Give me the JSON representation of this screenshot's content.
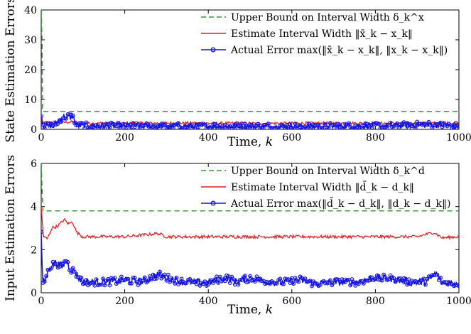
{
  "colors": {
    "upper": "#2e9e2e",
    "estimate": "#e8161b",
    "actual": "#1414e6",
    "axis": "#000000"
  },
  "chart_data": [
    {
      "type": "line",
      "title": "",
      "xlabel": "Time, k",
      "ylabel": "State Estimation Errors",
      "xlim": [
        0,
        1000
      ],
      "ylim": [
        0,
        40
      ],
      "xticks": [
        "0",
        "200",
        "400",
        "600",
        "800",
        "1000"
      ],
      "yticks": [
        "0",
        "10",
        "20",
        "30",
        "40"
      ],
      "legend_position": "top-right",
      "grid": false,
      "series": [
        {
          "name": "Upper Bound on Interval Width δ_k^x",
          "style": "dashed",
          "points": [
            [
              0,
              40
            ],
            [
              2,
              30
            ],
            [
              3,
              6
            ],
            [
              1000,
              6
            ]
          ]
        },
        {
          "name": "Estimate Interval Width ‖x̄_k − x_k‖",
          "style": "solid",
          "points": [
            [
              0,
              5
            ],
            [
              2,
              2
            ],
            [
              50,
              2.3
            ],
            [
              80,
              2.5
            ],
            [
              100,
              2
            ],
            [
              300,
              2.1
            ],
            [
              500,
              2
            ],
            [
              700,
              2.1
            ],
            [
              900,
              2
            ],
            [
              1000,
              2
            ]
          ]
        },
        {
          "name": "Actual Error max(‖x̄_k − x_k‖, ‖x_k − x_k‖)",
          "style": "solid-marker",
          "points": [
            [
              0,
              5.5
            ],
            [
              5,
              1
            ],
            [
              30,
              1.3
            ],
            [
              55,
              4.5
            ],
            [
              60,
              3.5
            ],
            [
              65,
              4.5
            ],
            [
              70,
              4
            ],
            [
              75,
              4.5
            ],
            [
              85,
              1.2
            ],
            [
              200,
              1.1
            ],
            [
              400,
              1
            ],
            [
              600,
              1
            ],
            [
              800,
              1.1
            ],
            [
              940,
              1.6
            ],
            [
              1000,
              1
            ]
          ]
        }
      ]
    },
    {
      "type": "line",
      "title": "",
      "xlabel": "Time, k",
      "ylabel": "Input Estimation Errors",
      "xlim": [
        0,
        1000
      ],
      "ylim": [
        0,
        6
      ],
      "xticks": [
        "0",
        "200",
        "400",
        "600",
        "800",
        "1000"
      ],
      "yticks": [
        "0",
        "2",
        "4",
        "6"
      ],
      "legend_position": "top-right",
      "grid": false,
      "series": [
        {
          "name": "Upper Bound on Interval Width δ_k^d",
          "style": "dashed",
          "points": [
            [
              0,
              6
            ],
            [
              2,
              4.8
            ],
            [
              4,
              3.8
            ],
            [
              1000,
              3.8
            ]
          ]
        },
        {
          "name": "Estimate Interval Width ‖d̄_k − d_k‖",
          "style": "solid",
          "points": [
            [
              0,
              4
            ],
            [
              5,
              2.6
            ],
            [
              15,
              2.5
            ],
            [
              25,
              3
            ],
            [
              40,
              3.1
            ],
            [
              55,
              3.4
            ],
            [
              65,
              3.2
            ],
            [
              75,
              3.3
            ],
            [
              85,
              2.8
            ],
            [
              100,
              2.6
            ],
            [
              200,
              2.6
            ],
            [
              280,
              2.75
            ],
            [
              300,
              2.6
            ],
            [
              500,
              2.6
            ],
            [
              700,
              2.6
            ],
            [
              900,
              2.6
            ],
            [
              940,
              2.8
            ],
            [
              960,
              2.55
            ],
            [
              1000,
              2.6
            ]
          ]
        },
        {
          "name": "Actual Error max(‖d̄_k − d_k‖, ‖d_k − d_k‖)",
          "style": "solid-marker",
          "points": [
            [
              0,
              2.8
            ],
            [
              3,
              0.5
            ],
            [
              10,
              0.6
            ],
            [
              20,
              1.2
            ],
            [
              35,
              1.4
            ],
            [
              50,
              1.2
            ],
            [
              60,
              1.5
            ],
            [
              70,
              1.1
            ],
            [
              80,
              1.0
            ],
            [
              90,
              0.7
            ],
            [
              100,
              0.5
            ],
            [
              160,
              0.5
            ],
            [
              200,
              0.6
            ],
            [
              240,
              0.5
            ],
            [
              280,
              0.85
            ],
            [
              300,
              0.7
            ],
            [
              340,
              0.5
            ],
            [
              400,
              0.45
            ],
            [
              420,
              0.6
            ],
            [
              440,
              0.7
            ],
            [
              470,
              0.5
            ],
            [
              500,
              0.7
            ],
            [
              540,
              0.5
            ],
            [
              580,
              0.5
            ],
            [
              620,
              0.6
            ],
            [
              660,
              0.4
            ],
            [
              700,
              0.5
            ],
            [
              760,
              0.5
            ],
            [
              800,
              0.7
            ],
            [
              840,
              0.65
            ],
            [
              880,
              0.5
            ],
            [
              920,
              0.5
            ],
            [
              945,
              0.9
            ],
            [
              960,
              0.45
            ],
            [
              1000,
              0.45
            ]
          ]
        }
      ]
    }
  ]
}
